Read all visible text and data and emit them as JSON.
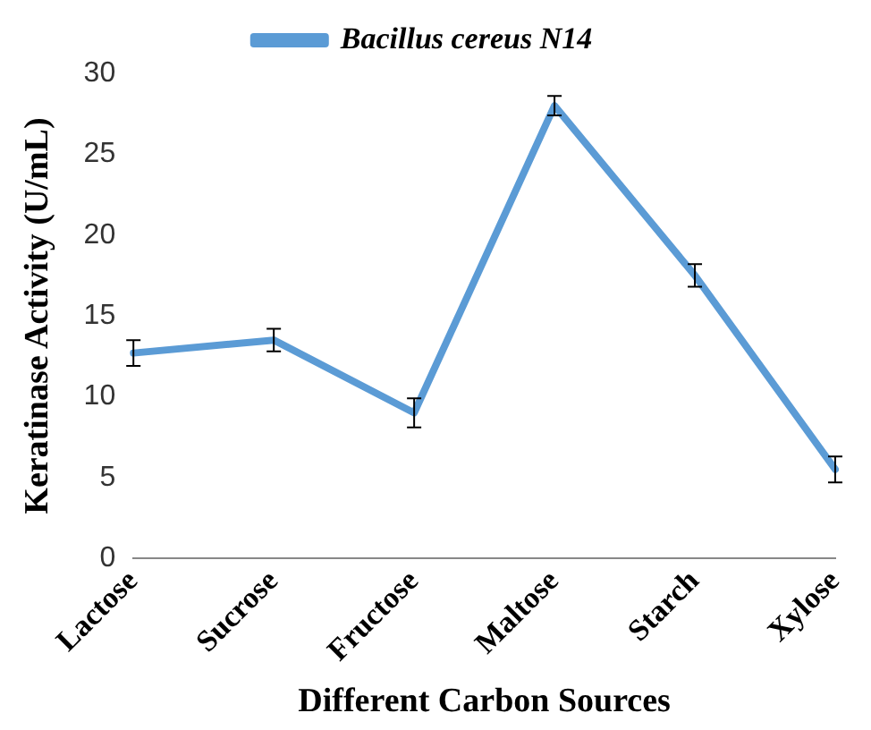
{
  "chart_data": {
    "type": "line",
    "xlabel": "Different Carbon Sources",
    "ylabel": "Keratinase Activity (U/mL)",
    "categories": [
      "Lactose",
      "Sucrose",
      "Fructose",
      "Maltose",
      "Starch",
      "Xylose"
    ],
    "series": [
      {
        "name": "Bacillus cereus N14",
        "color": "#5b9bd5",
        "values": [
          12.7,
          13.5,
          9.0,
          28.0,
          17.5,
          5.5
        ],
        "errors": [
          0.8,
          0.7,
          0.9,
          0.6,
          0.7,
          0.8
        ]
      }
    ],
    "ylim": [
      0,
      30
    ],
    "yticks": [
      0,
      5,
      10,
      15,
      20,
      25,
      30
    ],
    "grid": false,
    "legend": "top",
    "line_style": "solid"
  }
}
